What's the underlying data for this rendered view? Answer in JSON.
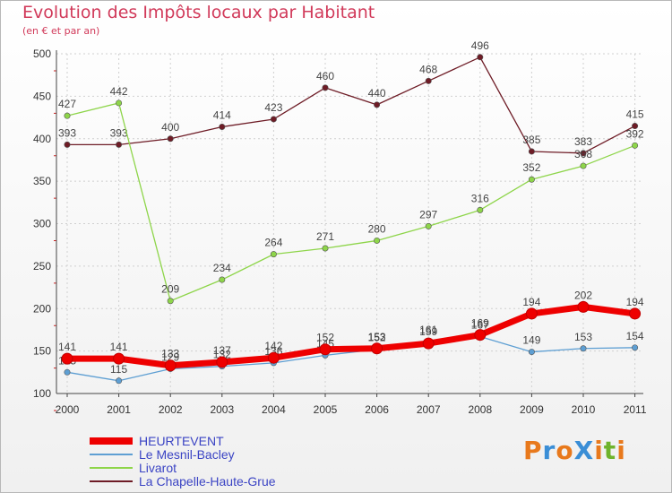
{
  "chart_data": {
    "type": "line",
    "title": "Evolution des Impôts locaux par Habitant",
    "subtitle": "(en € et par an)",
    "xlabel": "",
    "ylabel": "",
    "x": [
      "2000",
      "2001",
      "2002",
      "2003",
      "2004",
      "2005",
      "2006",
      "2007",
      "2008",
      "2009",
      "2010",
      "2011"
    ],
    "ylim": [
      100,
      500
    ],
    "yticks": [
      100,
      150,
      200,
      250,
      300,
      350,
      400,
      450,
      500
    ],
    "grid": true,
    "legend_position": "bottom-left",
    "series": [
      {
        "name": "La Chapelle-Haute-Grue",
        "color": "#6e1c26",
        "values": [
          393,
          393,
          400,
          414,
          423,
          460,
          440,
          468,
          496,
          385,
          383,
          415
        ],
        "labels": [
          "393",
          "393",
          "400",
          "414",
          "423",
          "460",
          "440",
          "468",
          "496",
          "385",
          "383",
          "415"
        ]
      },
      {
        "name": "Livarot",
        "color": "#8ed54a",
        "values": [
          427,
          442,
          209,
          234,
          264,
          271,
          280,
          297,
          316,
          352,
          368,
          392
        ],
        "labels": [
          "427",
          "442",
          "209",
          "234",
          "264",
          "271",
          "280",
          "297",
          "316",
          "352",
          "368",
          "392"
        ]
      },
      {
        "name": "Le Mesnil-Bacley",
        "color": "#5e9fd3",
        "values": [
          125,
          115,
          129,
          132,
          136,
          145,
          152,
          161,
          167,
          149,
          153,
          154
        ],
        "labels": [
          "125",
          "115",
          "129",
          "132",
          "136",
          "145",
          "152",
          "161",
          "167",
          "149",
          "153",
          "154"
        ]
      },
      {
        "name": "HEURTEVENT",
        "color": "#ee0000",
        "values": [
          141,
          141,
          133,
          137,
          142,
          152,
          153,
          159,
          169,
          194,
          202,
          194
        ],
        "labels": [
          "141",
          "141",
          "133",
          "137",
          "142",
          "152",
          "153",
          "159",
          "169",
          "194",
          "202",
          "194"
        ]
      }
    ],
    "legend": [
      "HEURTEVENT",
      "Le Mesnil-Bacley",
      "Livarot",
      "La Chapelle-Haute-Grue"
    ]
  },
  "logo": {
    "text": "ProXiti",
    "colors": [
      "#e8791c",
      "#3a8ed6",
      "#e8791c",
      "#3a8ed6",
      "#e8791c",
      "#6fb32c",
      "#e8791c"
    ]
  }
}
